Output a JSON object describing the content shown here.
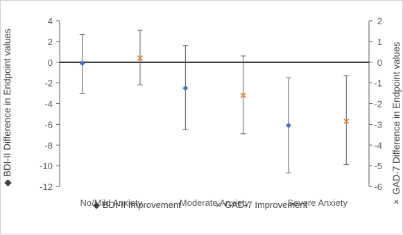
{
  "chart_data": {
    "type": "scatter",
    "categories": [
      "No/Mild Anxiety",
      "Moderate Anxiety",
      "Severe Anxiety"
    ],
    "y_left": {
      "label": "BDI-II Difference in Endpoint values",
      "ylim": [
        -12,
        4
      ],
      "ticks": [
        4,
        2,
        0,
        -2,
        -4,
        -6,
        -8,
        -10,
        -12
      ]
    },
    "y_right": {
      "label": "GAD-7 Difference in Endpoint values",
      "ylim": [
        -6,
        2
      ],
      "ticks": [
        2,
        1,
        0,
        -1,
        -2,
        -3,
        -4,
        -5,
        -6
      ]
    },
    "series": [
      {
        "name": "BDI-II Improvement",
        "axis": "left",
        "marker": "diamond",
        "color": "#4472c4",
        "values": [
          -0.1,
          -2.5,
          -6.1
        ],
        "error_low": [
          -3.0,
          -6.5,
          -10.7
        ],
        "error_high": [
          2.7,
          1.6,
          -1.5
        ]
      },
      {
        "name": "GAD-7 Improvement",
        "axis": "right",
        "marker": "x",
        "color": "#ed7d31",
        "values": [
          0.2,
          -1.6,
          -2.85
        ],
        "error_low": [
          -1.1,
          -3.45,
          -4.95
        ],
        "error_high": [
          1.55,
          0.3,
          -0.65
        ]
      }
    ],
    "grid": false,
    "legend": "bottom"
  },
  "left_marker_glyph": "◆",
  "right_marker_glyph": "×"
}
